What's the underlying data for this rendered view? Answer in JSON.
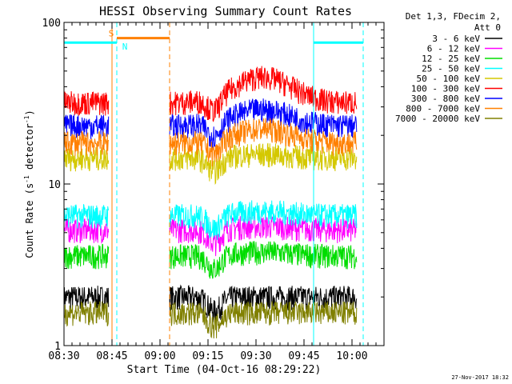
{
  "chart_data": {
    "type": "line",
    "title": "HESSI Observing Summary Count Rates",
    "xlabel": "Start Time (04-Oct-16 08:29:22)",
    "ylabel_main": "Count Rate (s",
    "ylabel_sup": "-1",
    "ylabel_mid": " detector",
    "ylabel_end": ")",
    "y_log": true,
    "ylim": [
      1,
      100
    ],
    "xlim_minutes": [
      0,
      100
    ],
    "x_ticks": [
      {
        "min": 0,
        "label": "08:30"
      },
      {
        "min": 15,
        "label": "08:45"
      },
      {
        "min": 30,
        "label": "09:00"
      },
      {
        "min": 45,
        "label": "09:15"
      },
      {
        "min": 60,
        "label": "09:30"
      },
      {
        "min": 75,
        "label": "09:45"
      },
      {
        "min": 90,
        "label": "10:00"
      }
    ],
    "y_ticks": [
      {
        "value": 1,
        "label": "1"
      },
      {
        "value": 10,
        "label": "10"
      },
      {
        "value": 100,
        "label": "100"
      }
    ],
    "legend_header": [
      "Det 1,3, FDecim 2,",
      "Att 0"
    ],
    "legend_placement": "right",
    "series": [
      {
        "name": "3 - 6 keV",
        "color": "#000000",
        "level": 2.0,
        "bump": 0.0
      },
      {
        "name": "6 - 12 keV",
        "color": "#ff00ff",
        "level": 5.2,
        "bump": 0.3
      },
      {
        "name": "12 - 25 keV",
        "color": "#00dd00",
        "level": 3.6,
        "bump": 0.2
      },
      {
        "name": "25 - 50 keV",
        "color": "#00ffff",
        "level": 6.4,
        "bump": 0.4
      },
      {
        "name": "50 - 100 keV",
        "color": "#d4c800",
        "level": 14.5,
        "bump": 0.8
      },
      {
        "name": "100 - 300 keV",
        "color": "#ff0000",
        "level": 32.0,
        "bump": 14.0
      },
      {
        "name": "300 - 800 keV",
        "color": "#0000ff",
        "level": 23.0,
        "bump": 6.0
      },
      {
        "name": "800 - 7000 keV",
        "color": "#ff8000",
        "level": 18.0,
        "bump": 4.0
      },
      {
        "name": "7000 - 20000 keV",
        "color": "#808000",
        "level": 1.6,
        "bump": 0.0
      }
    ],
    "segments": [
      {
        "start": 0,
        "end": 14.0
      },
      {
        "start": 33.0,
        "end": 91.5
      }
    ],
    "flags": [
      {
        "label": "S",
        "color": "#ff8000",
        "start": 16.5,
        "end": 33.0,
        "y_value": 80
      },
      {
        "label": "N",
        "color": "#00ffff",
        "start": 0,
        "end": 16.5,
        "y_value": 75
      },
      {
        "label": "",
        "color": "#00ffff",
        "start": 78,
        "end": 93.5,
        "y_value": 75
      }
    ],
    "markers": [
      {
        "min": 15.0,
        "color": "#ff8000",
        "style": "solid"
      },
      {
        "min": 16.5,
        "color": "#00ffff",
        "style": "dashed"
      },
      {
        "min": 33.0,
        "color": "#ff8000",
        "style": "dashed"
      },
      {
        "min": 78.0,
        "color": "#00ffff",
        "style": "solid"
      },
      {
        "min": 93.5,
        "color": "#00ffff",
        "style": "dashed"
      }
    ]
  },
  "footer_timestamp": "27-Nov-2017 18:32"
}
